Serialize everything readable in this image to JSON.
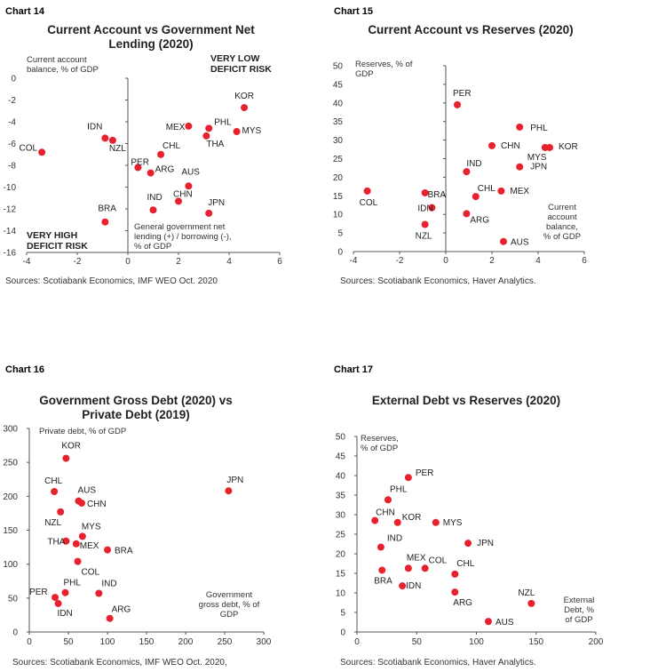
{
  "colors": {
    "point": "#e8212e",
    "axis": "#555555",
    "text": "#222222"
  },
  "chart_data": [
    {
      "id": "chart14",
      "type": "scatter",
      "number": "Chart 14",
      "title": [
        "Current Account  vs Government Net",
        "Lending (2020)"
      ],
      "xlabel": [
        "General government net",
        "lending (+) / borrowing (-),",
        "% of GDP"
      ],
      "ylabel": [
        "Current account",
        "balance, % of GDP"
      ],
      "xlim": [
        -4,
        6
      ],
      "ylim": [
        -16,
        0
      ],
      "xticks": [
        -4,
        -2,
        0,
        2,
        4,
        6
      ],
      "yticks": [
        0,
        -2,
        -4,
        -6,
        -8,
        -10,
        -12,
        -14,
        -16
      ],
      "annotations": [
        {
          "lines": [
            "VERY LOW",
            "DEFICIT  RISK"
          ]
        },
        {
          "lines": [
            "VERY HIGH",
            "DEFICIT  RISK"
          ]
        }
      ],
      "source": "Sources: Scotiabank Economics, IMF WEO Oct. 2020",
      "points": [
        {
          "label": "KOR",
          "x": 4.6,
          "y": -2.7
        },
        {
          "label": "MEX",
          "x": 2.4,
          "y": -4.4
        },
        {
          "label": "PHL",
          "x": 3.2,
          "y": -4.6
        },
        {
          "label": "MYS",
          "x": 4.3,
          "y": -4.9
        },
        {
          "label": "THA",
          "x": 3.1,
          "y": -5.3
        },
        {
          "label": "IDN",
          "x": -0.9,
          "y": -5.5
        },
        {
          "label": "NZL",
          "x": -0.6,
          "y": -5.7
        },
        {
          "label": "COL",
          "x": -3.4,
          "y": -6.8
        },
        {
          "label": "CHL",
          "x": 1.3,
          "y": -7.0
        },
        {
          "label": "PER",
          "x": 0.4,
          "y": -8.2
        },
        {
          "label": "ARG",
          "x": 0.9,
          "y": -8.7
        },
        {
          "label": "AUS",
          "x": 2.4,
          "y": -9.9
        },
        {
          "label": "CHN",
          "x": 2.0,
          "y": -11.3
        },
        {
          "label": "IND",
          "x": 1.0,
          "y": -12.1
        },
        {
          "label": "JPN",
          "x": 3.2,
          "y": -12.4
        },
        {
          "label": "BRA",
          "x": -0.9,
          "y": -13.2
        }
      ]
    },
    {
      "id": "chart15",
      "type": "scatter",
      "number": "Chart 15",
      "title": [
        "Current Account  vs Reserves (2020)"
      ],
      "xlabel": [
        "Current",
        "account",
        "balance,",
        "% of GDP"
      ],
      "ylabel": [
        "Reserves, % of",
        "GDP"
      ],
      "xlim": [
        -4,
        6
      ],
      "ylim": [
        0,
        50
      ],
      "xticks": [
        -4,
        -2,
        0,
        2,
        4,
        6
      ],
      "yticks": [
        0,
        5,
        10,
        15,
        20,
        25,
        30,
        35,
        40,
        45,
        50
      ],
      "source": "Sources: Scotiabank Economics, Haver Analytics.",
      "points": [
        {
          "label": "PER",
          "x": 0.5,
          "y": 39.5
        },
        {
          "label": "PHL",
          "x": 3.2,
          "y": 33.5
        },
        {
          "label": "CHN",
          "x": 2.0,
          "y": 28.5
        },
        {
          "label": "KOR",
          "x": 4.5,
          "y": 28.0
        },
        {
          "label": "MYS",
          "x": 4.3,
          "y": 28.0
        },
        {
          "label": "JPN",
          "x": 3.2,
          "y": 22.8
        },
        {
          "label": "IND",
          "x": 0.9,
          "y": 21.5
        },
        {
          "label": "CHL",
          "x": 1.3,
          "y": 14.8
        },
        {
          "label": "MEX",
          "x": 2.4,
          "y": 16.3
        },
        {
          "label": "COL",
          "x": -3.4,
          "y": 16.3
        },
        {
          "label": "BRA",
          "x": -0.9,
          "y": 15.8
        },
        {
          "label": "IDN",
          "x": -0.6,
          "y": 11.8
        },
        {
          "label": "ARG",
          "x": 0.9,
          "y": 10.2
        },
        {
          "label": "NZL",
          "x": -0.9,
          "y": 7.3
        },
        {
          "label": "AUS",
          "x": 2.5,
          "y": 2.7
        }
      ]
    },
    {
      "id": "chart16",
      "type": "scatter",
      "number": "Chart 16",
      "title": [
        "Government Gross Debt (2020) vs",
        "Private Debt (2019)"
      ],
      "xlabel": [
        "Government",
        "gross debt, % of",
        "GDP"
      ],
      "ylabel": [
        "Private debt, % of GDP"
      ],
      "xlim": [
        0,
        300
      ],
      "ylim": [
        0,
        300
      ],
      "xticks": [
        0,
        50,
        100,
        150,
        200,
        250,
        300
      ],
      "yticks": [
        0,
        50,
        100,
        150,
        200,
        250,
        300
      ],
      "source": "Sources: Scotiabank Economics, IMF WEO Oct. 2020,",
      "points": [
        {
          "label": "KOR",
          "x": 47,
          "y": 256
        },
        {
          "label": "JPN",
          "x": 255,
          "y": 208
        },
        {
          "label": "CHL",
          "x": 32,
          "y": 207
        },
        {
          "label": "AUS",
          "x": 63,
          "y": 193
        },
        {
          "label": "CHN",
          "x": 67,
          "y": 190
        },
        {
          "label": "NZL",
          "x": 40,
          "y": 177
        },
        {
          "label": "MYS",
          "x": 68,
          "y": 141
        },
        {
          "label": "THA",
          "x": 47,
          "y": 134
        },
        {
          "label": "MEX",
          "x": 60,
          "y": 130
        },
        {
          "label": "BRA",
          "x": 100,
          "y": 121
        },
        {
          "label": "COL",
          "x": 62,
          "y": 104
        },
        {
          "label": "PHL",
          "x": 46,
          "y": 58
        },
        {
          "label": "IND",
          "x": 89,
          "y": 57
        },
        {
          "label": "PER",
          "x": 33,
          "y": 51
        },
        {
          "label": "IDN",
          "x": 37,
          "y": 42
        },
        {
          "label": "ARG",
          "x": 103,
          "y": 20
        }
      ]
    },
    {
      "id": "chart17",
      "type": "scatter",
      "number": "Chart 17",
      "title": [
        "External Debt vs Reserves (2020)"
      ],
      "xlabel": [
        "External",
        "Debt, %",
        "of GDP"
      ],
      "ylabel": [
        "Reserves,",
        "% of GDP"
      ],
      "xlim": [
        0,
        200
      ],
      "ylim": [
        0,
        50
      ],
      "xticks": [
        0,
        50,
        100,
        150,
        200
      ],
      "yticks": [
        0,
        5,
        10,
        15,
        20,
        25,
        30,
        35,
        40,
        45,
        50
      ],
      "source": "Sources: Scotiabank Economics, Haver Analytics.",
      "points": [
        {
          "label": "PER",
          "x": 43,
          "y": 39.5
        },
        {
          "label": "PHL",
          "x": 26,
          "y": 33.8
        },
        {
          "label": "CHN",
          "x": 15,
          "y": 28.5
        },
        {
          "label": "KOR",
          "x": 34,
          "y": 28.0
        },
        {
          "label": "MYS",
          "x": 66,
          "y": 28.0
        },
        {
          "label": "JPN",
          "x": 93,
          "y": 22.7
        },
        {
          "label": "IND",
          "x": 20,
          "y": 21.7
        },
        {
          "label": "MEX",
          "x": 43,
          "y": 16.3
        },
        {
          "label": "COL",
          "x": 57,
          "y": 16.3
        },
        {
          "label": "CHL",
          "x": 82,
          "y": 14.8
        },
        {
          "label": "BRA",
          "x": 21,
          "y": 15.8
        },
        {
          "label": "IDN",
          "x": 38,
          "y": 11.8
        },
        {
          "label": "ARG",
          "x": 82,
          "y": 10.2
        },
        {
          "label": "NZL",
          "x": 146,
          "y": 7.3
        },
        {
          "label": "AUS",
          "x": 110,
          "y": 2.7
        }
      ]
    }
  ]
}
